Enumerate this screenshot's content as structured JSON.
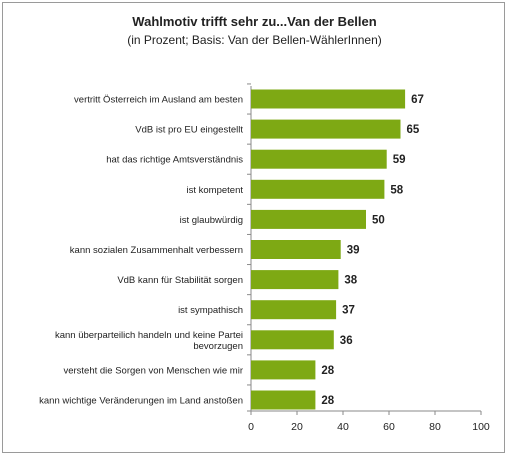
{
  "chart_data": {
    "type": "bar",
    "orientation": "horizontal",
    "title": "Wahlmotiv trifft sehr zu...Van der Bellen",
    "subtitle": "(in Prozent; Basis: Van der Bellen-WählerInnen)",
    "categories": [
      "vertritt Österreich im Ausland am besten",
      "VdB ist pro EU eingestellt",
      "hat das richtige Amtsverständnis",
      "ist kompetent",
      "ist glaubwürdig",
      "kann sozialen Zusammenhalt verbessern",
      "VdB kann für Stabilität sorgen",
      "ist sympathisch",
      [
        "kann überparteilich handeln und keine Partei",
        "bevorzugen"
      ],
      "versteht die Sorgen von Menschen wie mir",
      "kann wichtige Veränderungen im Land anstoßen"
    ],
    "values": [
      67,
      65,
      59,
      58,
      50,
      39,
      38,
      37,
      36,
      28,
      28
    ],
    "xlim": [
      0,
      100
    ],
    "xticks": [
      0,
      20,
      40,
      60,
      80,
      100
    ],
    "bar_color": "#7ea914",
    "grid": false,
    "legend": "none"
  }
}
